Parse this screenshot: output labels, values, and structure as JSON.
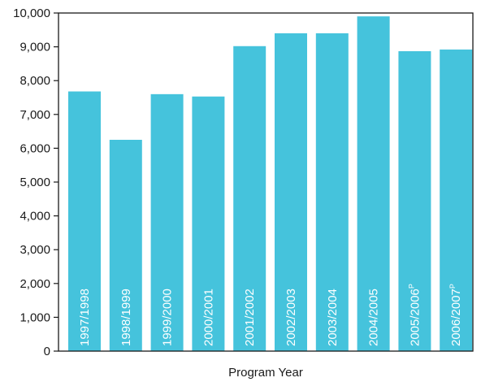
{
  "chart_data": {
    "type": "bar",
    "title": "",
    "xlabel": "Program Year",
    "ylabel": "",
    "ylim": [
      0,
      10000
    ],
    "yticks": [
      "0",
      "1,000",
      "2,000",
      "3,000",
      "4,000",
      "5,000",
      "6,000",
      "7,000",
      "8,000",
      "9,000",
      "10,000"
    ],
    "grid": false,
    "legend": "none",
    "bar_color": "#45c3dc",
    "categories": [
      "1997/1998",
      "1998/1999",
      "1999/2000",
      "2000/2001",
      "2001/2002",
      "2002/2003",
      "2003/2004",
      "2004/2005",
      "2005/2006",
      "2006/2007"
    ],
    "superscripts": [
      "",
      "",
      "",
      "",
      "",
      "",
      "",
      "",
      "P",
      "P"
    ],
    "values": [
      7680,
      6250,
      7600,
      7530,
      9020,
      9400,
      9400,
      9900,
      8870,
      8920
    ]
  }
}
